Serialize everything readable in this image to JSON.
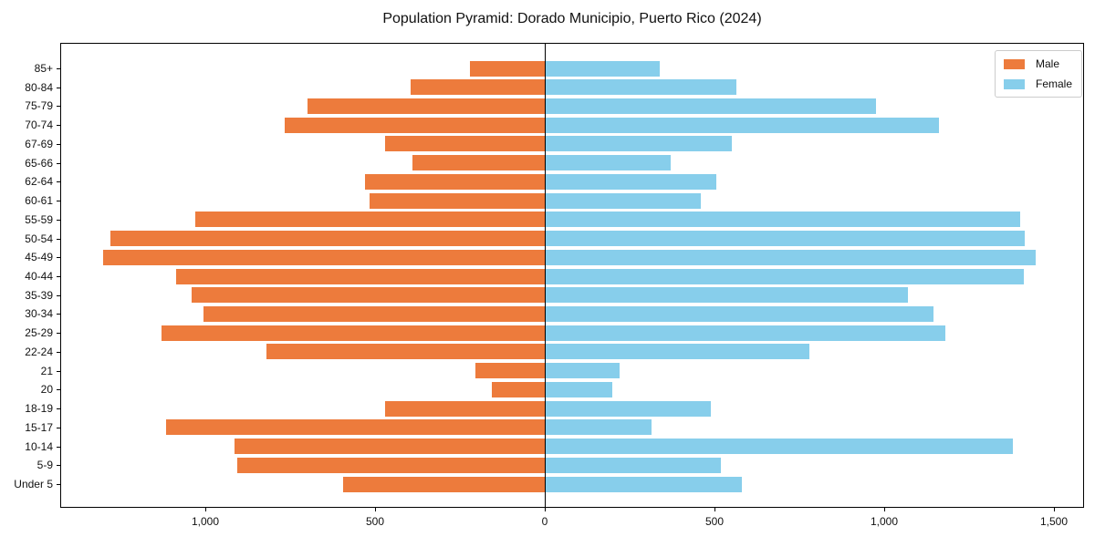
{
  "title": "Population Pyramid: Dorado Municipio, Puerto Rico (2024)",
  "legend": {
    "male_label": "Male",
    "female_label": "Female"
  },
  "colors": {
    "male": "#ED7B3C",
    "female": "#87CEEB",
    "axis": "#000000",
    "legend_border": "#cccccc",
    "background": "#ffffff"
  },
  "chart_data": {
    "type": "bar",
    "subtype": "population-pyramid-horizontal",
    "title": "Population Pyramid: Dorado Municipio, Puerto Rico (2024)",
    "xlabel": "",
    "ylabel": "",
    "grid": false,
    "legend_position": "upper-right",
    "categories_top_to_bottom": [
      "85+",
      "80-84",
      "75-79",
      "70-74",
      "67-69",
      "65-66",
      "62-64",
      "60-61",
      "55-59",
      "50-54",
      "45-49",
      "40-44",
      "35-39",
      "30-34",
      "25-29",
      "22-24",
      "21",
      "20",
      "18-19",
      "15-17",
      "10-14",
      "5-9",
      "Under 5"
    ],
    "series": [
      {
        "name": "Male",
        "side": "left",
        "color": "#ED7B3C",
        "values": [
          220,
          395,
          700,
          765,
          470,
          390,
          530,
          515,
          1030,
          1280,
          1300,
          1085,
          1040,
          1005,
          1130,
          820,
          205,
          155,
          470,
          1115,
          915,
          905,
          595
        ]
      },
      {
        "name": "Female",
        "side": "right",
        "color": "#87CEEB",
        "values": [
          340,
          565,
          975,
          1160,
          550,
          370,
          505,
          460,
          1400,
          1415,
          1445,
          1410,
          1070,
          1145,
          1180,
          780,
          220,
          200,
          490,
          315,
          1380,
          520,
          580
        ]
      }
    ],
    "x_ticks": [
      {
        "value": -1000,
        "label": "1,000"
      },
      {
        "value": -500,
        "label": "500"
      },
      {
        "value": 0,
        "label": "0"
      },
      {
        "value": 500,
        "label": "500"
      },
      {
        "value": 1000,
        "label": "1,000"
      },
      {
        "value": 1500,
        "label": "1,500"
      }
    ],
    "xlim": [
      -1430,
      1590
    ]
  }
}
